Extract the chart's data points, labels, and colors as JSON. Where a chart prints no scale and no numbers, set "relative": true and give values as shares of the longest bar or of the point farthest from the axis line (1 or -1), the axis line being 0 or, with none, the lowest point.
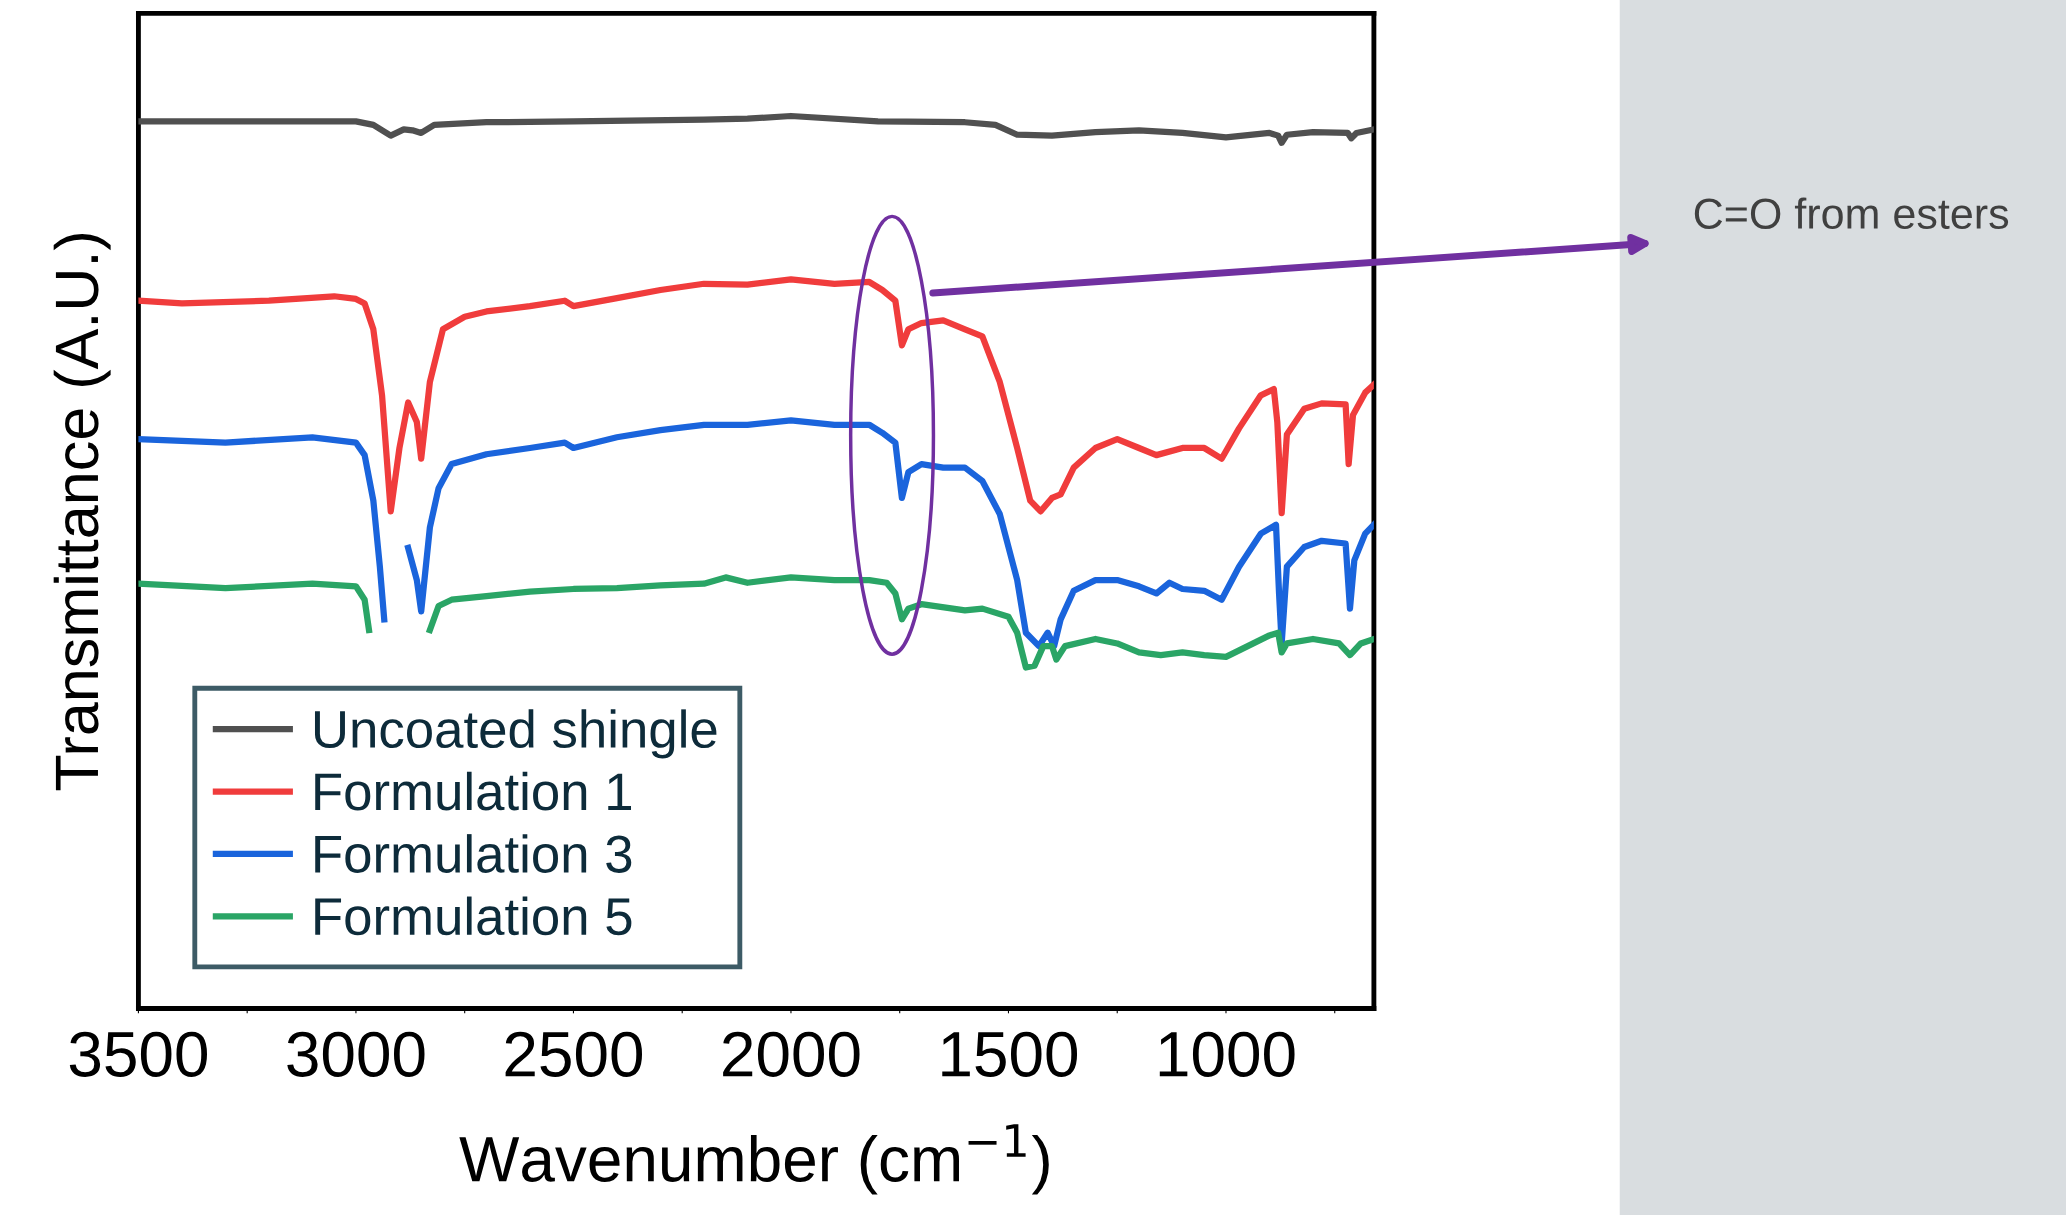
{
  "chart_data": {
    "type": "line",
    "xlabel": "Wavenumber (cm$^{−1}$)",
    "ylabel": "Transmittance (A.U.)",
    "relative": true,
    "xlim": [
      3500,
      660
    ],
    "xticks": [
      3500,
      {
        "value": 3250,
        "label": null
      },
      3000,
      {
        "value": 2750,
        "label": null
      },
      2500,
      {
        "value": 2250,
        "label": null
      },
      2000,
      {
        "value": 1750,
        "label": null
      },
      1500,
      {
        "value": 1250,
        "label": null
      },
      1000,
      {
        "value": 750,
        "label": null
      }
    ],
    "legend": "bottom left",
    "grid": false,
    "marker": "none",
    "line_style": "solid",
    "annotations": [
      "C=O from esters"
    ],
    "series": [
      {
        "name": "Uncoated shingle",
        "color": "#505050",
        "x": [
          3500,
          3200,
          3000,
          2960,
          2920,
          2890,
          2870,
          2850,
          2820,
          2700,
          2500,
          2200,
          2100,
          2000,
          1800,
          1600,
          1530,
          1480,
          1400,
          1300,
          1200,
          1100,
          1000,
          900,
          880,
          872,
          860,
          800,
          720,
          712,
          700,
          660
        ],
        "values": [
          0.994,
          0.994,
          0.994,
          0.99,
          0.978,
          0.985,
          0.984,
          0.981,
          0.99,
          0.993,
          0.994,
          0.996,
          0.997,
          1.0,
          0.994,
          0.993,
          0.99,
          0.979,
          0.978,
          0.982,
          0.984,
          0.981,
          0.976,
          0.981,
          0.978,
          0.97,
          0.979,
          0.982,
          0.981,
          0.975,
          0.981,
          0.985
        ]
      },
      {
        "name": "Formulation 1",
        "color": "#f03c3c",
        "x": [
          3500,
          3400,
          3200,
          3050,
          3000,
          2980,
          2960,
          2940,
          2920,
          2900,
          2880,
          2860,
          2850,
          2830,
          2800,
          2750,
          2700,
          2600,
          2520,
          2500,
          2400,
          2300,
          2200,
          2100,
          2000,
          1900,
          1820,
          1790,
          1760,
          1745,
          1730,
          1700,
          1650,
          1600,
          1560,
          1520,
          1480,
          1450,
          1426,
          1400,
          1380,
          1350,
          1300,
          1250,
          1200,
          1160,
          1100,
          1050,
          1010,
          970,
          920,
          890,
          882,
          872,
          860,
          820,
          780,
          725,
          718,
          708,
          680,
          660
        ],
        "values": [
          0.793,
          0.79,
          0.793,
          0.798,
          0.795,
          0.79,
          0.761,
          0.687,
          0.557,
          0.628,
          0.679,
          0.657,
          0.616,
          0.702,
          0.761,
          0.775,
          0.781,
          0.787,
          0.793,
          0.787,
          0.796,
          0.805,
          0.812,
          0.811,
          0.817,
          0.812,
          0.814,
          0.805,
          0.793,
          0.743,
          0.761,
          0.768,
          0.771,
          0.761,
          0.753,
          0.702,
          0.628,
          0.569,
          0.557,
          0.572,
          0.576,
          0.606,
          0.628,
          0.638,
          0.628,
          0.62,
          0.628,
          0.628,
          0.616,
          0.65,
          0.687,
          0.694,
          0.657,
          0.555,
          0.643,
          0.672,
          0.678,
          0.677,
          0.61,
          0.665,
          0.69,
          0.699
        ]
      },
      {
        "name": "Formulation 3",
        "color": "#1a64dc",
        "x": [
          3500,
          3300,
          3100,
          3000,
          2980,
          2960,
          2945,
          2935,
          2930,
          2900,
          2880,
          2860,
          2850,
          2830,
          2810,
          2780,
          2700,
          2600,
          2520,
          2500,
          2400,
          2300,
          2200,
          2100,
          2000,
          1900,
          1820,
          1790,
          1760,
          1745,
          1730,
          1700,
          1650,
          1600,
          1560,
          1520,
          1480,
          1460,
          1430,
          1410,
          1395,
          1380,
          1350,
          1300,
          1250,
          1200,
          1160,
          1130,
          1100,
          1050,
          1010,
          970,
          920,
          885,
          878,
          872,
          860,
          820,
          780,
          725,
          715,
          705,
          680,
          660
        ],
        "values": [
          0.638,
          0.634,
          0.64,
          0.634,
          0.62,
          0.569,
          0.495,
          0.436,
          null,
          null,
          0.516,
          0.48,
          0.445,
          0.539,
          0.583,
          0.61,
          0.621,
          0.628,
          0.634,
          0.628,
          0.64,
          0.648,
          0.654,
          0.654,
          0.659,
          0.654,
          0.654,
          0.645,
          0.634,
          0.572,
          0.601,
          0.61,
          0.606,
          0.606,
          0.591,
          0.554,
          0.48,
          0.421,
          0.406,
          0.421,
          0.406,
          0.436,
          0.468,
          0.48,
          0.48,
          0.473,
          0.465,
          0.477,
          0.47,
          0.468,
          0.458,
          0.495,
          0.532,
          0.542,
          0.465,
          0.409,
          0.495,
          0.517,
          0.524,
          0.521,
          0.448,
          0.502,
          0.532,
          0.542
        ]
      },
      {
        "name": "Formulation 5",
        "color": "#2aa566",
        "x": [
          3500,
          3300,
          3100,
          3000,
          2980,
          2970,
          2960,
          2840,
          2830,
          2810,
          2780,
          2700,
          2600,
          2500,
          2400,
          2300,
          2200,
          2150,
          2100,
          2000,
          1900,
          1820,
          1780,
          1760,
          1745,
          1730,
          1700,
          1600,
          1560,
          1500,
          1480,
          1460,
          1440,
          1420,
          1400,
          1390,
          1370,
          1300,
          1250,
          1200,
          1150,
          1100,
          1050,
          1000,
          950,
          900,
          880,
          872,
          860,
          800,
          740,
          715,
          690,
          660
        ],
        "values": [
          0.476,
          0.471,
          0.476,
          0.473,
          0.458,
          0.424,
          null,
          null,
          0.424,
          0.451,
          0.458,
          0.462,
          0.467,
          0.47,
          0.471,
          0.474,
          0.476,
          0.483,
          0.477,
          0.483,
          0.48,
          0.48,
          0.477,
          0.465,
          0.436,
          0.448,
          0.453,
          0.446,
          0.448,
          0.439,
          0.421,
          0.382,
          0.384,
          0.406,
          0.406,
          0.391,
          0.406,
          0.414,
          0.409,
          0.399,
          0.396,
          0.399,
          0.396,
          0.394,
          0.406,
          0.418,
          0.421,
          0.399,
          0.409,
          0.414,
          0.409,
          0.396,
          0.409,
          0.414
        ]
      }
    ]
  }
}
